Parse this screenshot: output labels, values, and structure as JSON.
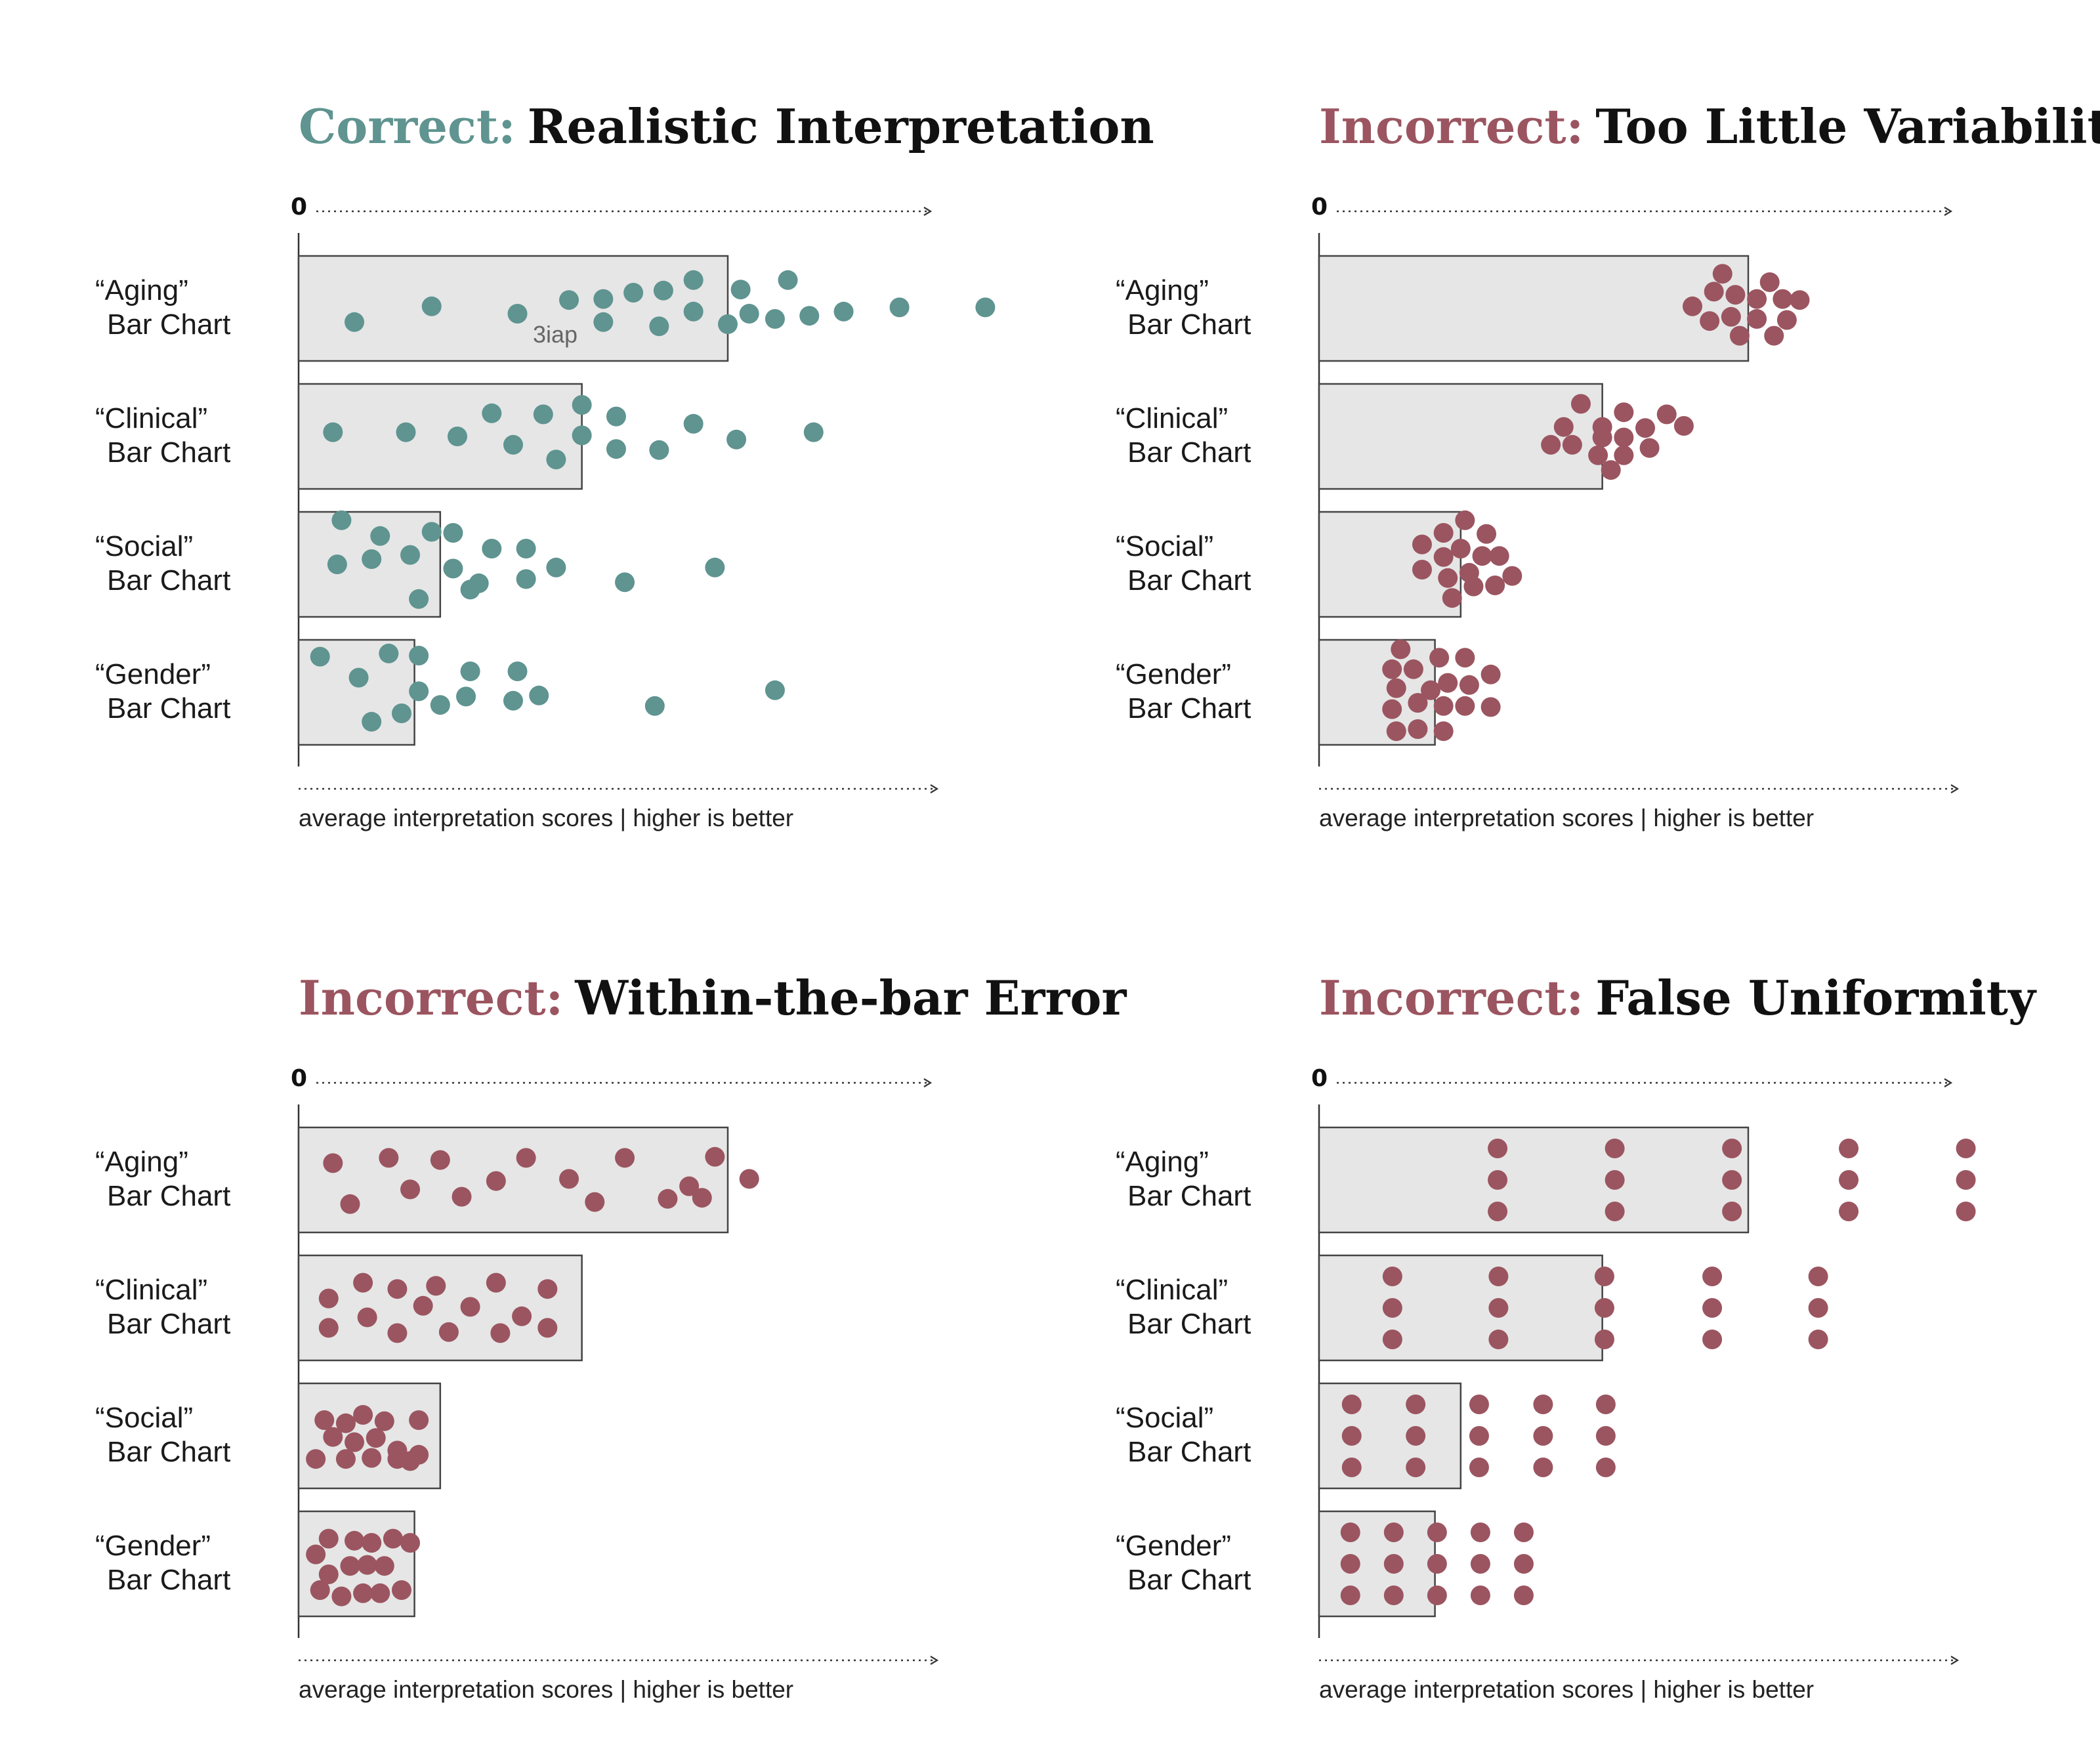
{
  "colors": {
    "correct": "#5f9490",
    "incorrect": "#9b5560",
    "bar_fill": "#e6e6e6",
    "bar_stroke": "#444444",
    "title_rest": "#111111"
  },
  "chart_data": [
    {
      "type": "bar",
      "title_prefix": "Correct:",
      "title_rest": "Realistic Interpretation",
      "tone": "correct",
      "zero_label": "0",
      "xlabel": "average interpretation scores | higher is better",
      "categories": [
        [
          "“Aging”",
          "Bar Chart"
        ],
        [
          "“Clinical”",
          "Bar Chart"
        ],
        [
          "“Social”",
          "Bar Chart"
        ],
        [
          "“Gender”",
          "Bar Chart"
        ]
      ],
      "bar_values": [
        100,
        66,
        33,
        27
      ],
      "note": "3iap",
      "points": [
        [
          [
            13,
            0.63
          ],
          [
            31,
            0.48
          ],
          [
            51,
            0.55
          ],
          [
            63,
            0.42
          ],
          [
            71,
            0.41
          ],
          [
            78,
            0.35
          ],
          [
            85,
            0.33
          ],
          [
            92,
            0.23
          ],
          [
            100,
            0.65
          ],
          [
            71,
            0.63
          ],
          [
            84,
            0.67
          ],
          [
            92,
            0.53
          ],
          [
            103,
            0.32
          ],
          [
            105,
            0.55
          ],
          [
            111,
            0.6
          ],
          [
            114,
            0.23
          ],
          [
            119,
            0.57
          ],
          [
            127,
            0.53
          ],
          [
            140,
            0.49
          ],
          [
            160,
            0.49
          ]
        ],
        [
          [
            8,
            0.46
          ],
          [
            25,
            0.46
          ],
          [
            37,
            0.5
          ],
          [
            45,
            0.28
          ],
          [
            50,
            0.58
          ],
          [
            57,
            0.29
          ],
          [
            60,
            0.72
          ],
          [
            66,
            0.2
          ],
          [
            66,
            0.49
          ],
          [
            74,
            0.31
          ],
          [
            74,
            0.62
          ],
          [
            84,
            0.63
          ],
          [
            92,
            0.38
          ],
          [
            102,
            0.53
          ],
          [
            120,
            0.46
          ]
        ],
        [
          [
            10,
            0.08
          ],
          [
            19,
            0.23
          ],
          [
            9,
            0.5
          ],
          [
            17,
            0.45
          ],
          [
            26,
            0.41
          ],
          [
            31,
            0.19
          ],
          [
            36,
            0.2
          ],
          [
            36,
            0.54
          ],
          [
            40,
            0.74
          ],
          [
            28,
            0.83
          ],
          [
            45,
            0.35
          ],
          [
            53,
            0.35
          ],
          [
            42,
            0.68
          ],
          [
            53,
            0.64
          ],
          [
            60,
            0.53
          ],
          [
            76,
            0.67
          ],
          [
            97,
            0.53
          ]
        ],
        [
          [
            5,
            0.16
          ],
          [
            21,
            0.13
          ],
          [
            14,
            0.36
          ],
          [
            28,
            0.15
          ],
          [
            40,
            0.3
          ],
          [
            51,
            0.3
          ],
          [
            28,
            0.49
          ],
          [
            56,
            0.53
          ],
          [
            39,
            0.54
          ],
          [
            50,
            0.58
          ],
          [
            83,
            0.63
          ],
          [
            111,
            0.48
          ],
          [
            17,
            0.78
          ],
          [
            24,
            0.7
          ],
          [
            33,
            0.62
          ]
        ]
      ]
    },
    {
      "type": "bar",
      "title_prefix": "Incorrect:",
      "title_rest": "Too Little Variability",
      "tone": "incorrect",
      "zero_label": "0",
      "xlabel": "average interpretation scores | higher is better",
      "categories": [
        [
          "“Aging”",
          "Bar Chart"
        ],
        [
          "“Clinical”",
          "Bar Chart"
        ],
        [
          "“Social”",
          "Bar Chart"
        ],
        [
          "“Gender”",
          "Bar Chart"
        ]
      ],
      "bar_values": [
        100,
        66,
        33,
        27
      ],
      "points": [
        [
          [
            94,
            0.17
          ],
          [
            105,
            0.25
          ],
          [
            92,
            0.34
          ],
          [
            97,
            0.37
          ],
          [
            102,
            0.41
          ],
          [
            108,
            0.41
          ],
          [
            112,
            0.42
          ],
          [
            87,
            0.48
          ],
          [
            91,
            0.62
          ],
          [
            96,
            0.58
          ],
          [
            102,
            0.6
          ],
          [
            109,
            0.61
          ],
          [
            98,
            0.76
          ],
          [
            106,
            0.76
          ]
        ],
        [
          [
            61,
            0.19
          ],
          [
            71,
            0.27
          ],
          [
            57,
            0.41
          ],
          [
            66,
            0.41
          ],
          [
            76,
            0.42
          ],
          [
            81,
            0.29
          ],
          [
            85,
            0.4
          ],
          [
            54,
            0.58
          ],
          [
            59,
            0.58
          ],
          [
            66,
            0.51
          ],
          [
            71,
            0.51
          ],
          [
            71,
            0.68
          ],
          [
            65,
            0.68
          ],
          [
            77,
            0.61
          ],
          [
            68,
            0.82
          ]
        ],
        [
          [
            34,
            0.08
          ],
          [
            29,
            0.2
          ],
          [
            39,
            0.21
          ],
          [
            24,
            0.31
          ],
          [
            29,
            0.43
          ],
          [
            33,
            0.35
          ],
          [
            38,
            0.42
          ],
          [
            42,
            0.42
          ],
          [
            24,
            0.55
          ],
          [
            30,
            0.63
          ],
          [
            35,
            0.58
          ],
          [
            41,
            0.7
          ],
          [
            45,
            0.61
          ],
          [
            31,
            0.82
          ],
          [
            36,
            0.71
          ]
        ],
        [
          [
            19,
            0.09
          ],
          [
            17,
            0.28
          ],
          [
            22,
            0.28
          ],
          [
            28,
            0.17
          ],
          [
            34,
            0.17
          ],
          [
            30,
            0.41
          ],
          [
            35,
            0.43
          ],
          [
            40,
            0.33
          ],
          [
            18,
            0.46
          ],
          [
            26,
            0.48
          ],
          [
            23,
            0.6
          ],
          [
            29,
            0.63
          ],
          [
            34,
            0.63
          ],
          [
            40,
            0.64
          ],
          [
            17,
            0.66
          ],
          [
            18,
            0.87
          ],
          [
            23,
            0.85
          ],
          [
            29,
            0.87
          ]
        ]
      ]
    },
    {
      "type": "bar",
      "title_prefix": "Incorrect:",
      "title_rest": "Within-the-bar Error",
      "tone": "incorrect",
      "zero_label": "0",
      "xlabel": "average interpretation scores | higher is better",
      "categories": [
        [
          "“Aging”",
          "Bar Chart"
        ],
        [
          "“Clinical”",
          "Bar Chart"
        ],
        [
          "“Social”",
          "Bar Chart"
        ],
        [
          "“Gender”",
          "Bar Chart"
        ]
      ],
      "bar_values": [
        100,
        66,
        33,
        27
      ],
      "points": [
        [
          [
            8,
            0.34
          ],
          [
            21,
            0.29
          ],
          [
            33,
            0.31
          ],
          [
            53,
            0.29
          ],
          [
            76,
            0.29
          ],
          [
            97,
            0.28
          ],
          [
            26,
            0.59
          ],
          [
            38,
            0.66
          ],
          [
            46,
            0.51
          ],
          [
            63,
            0.49
          ],
          [
            69,
            0.71
          ],
          [
            86,
            0.68
          ],
          [
            91,
            0.56
          ],
          [
            105,
            0.49
          ],
          [
            12,
            0.73
          ],
          [
            94,
            0.67
          ]
        ],
        [
          [
            7,
            0.41
          ],
          [
            15,
            0.26
          ],
          [
            23,
            0.32
          ],
          [
            32,
            0.29
          ],
          [
            46,
            0.26
          ],
          [
            58,
            0.32
          ],
          [
            29,
            0.48
          ],
          [
            40,
            0.49
          ],
          [
            52,
            0.58
          ],
          [
            7,
            0.69
          ],
          [
            16,
            0.59
          ],
          [
            23,
            0.74
          ],
          [
            35,
            0.73
          ],
          [
            47,
            0.74
          ],
          [
            58,
            0.69
          ]
        ],
        [
          [
            6,
            0.35
          ],
          [
            11,
            0.38
          ],
          [
            15,
            0.3
          ],
          [
            20,
            0.36
          ],
          [
            28,
            0.35
          ],
          [
            8,
            0.51
          ],
          [
            13,
            0.56
          ],
          [
            18,
            0.52
          ],
          [
            23,
            0.64
          ],
          [
            4,
            0.72
          ],
          [
            11,
            0.72
          ],
          [
            17,
            0.71
          ],
          [
            23,
            0.72
          ],
          [
            26,
            0.74
          ],
          [
            28,
            0.68
          ]
        ],
        [
          [
            7,
            0.26
          ],
          [
            13,
            0.28
          ],
          [
            17,
            0.3
          ],
          [
            22,
            0.26
          ],
          [
            26,
            0.3
          ],
          [
            4,
            0.41
          ],
          [
            12,
            0.52
          ],
          [
            16,
            0.51
          ],
          [
            20,
            0.52
          ],
          [
            7,
            0.6
          ],
          [
            5,
            0.75
          ],
          [
            10,
            0.81
          ],
          [
            15,
            0.78
          ],
          [
            19,
            0.78
          ],
          [
            24,
            0.75
          ]
        ]
      ]
    },
    {
      "type": "bar",
      "title_prefix": "Incorrect:",
      "title_rest": "False Uniformity",
      "tone": "incorrect",
      "zero_label": "0",
      "xlabel": "average interpretation scores | higher is better",
      "categories": [
        [
          "“Aging”",
          "Bar Chart"
        ],
        [
          "“Clinical”",
          "Bar Chart"
        ],
        [
          "“Social”",
          "Bar Chart"
        ],
        [
          "“Gender”",
          "Bar Chart"
        ]
      ],
      "bar_values": [
        100,
        66,
        33,
        27
      ],
      "point_columns": [
        [
          41.6,
          68.9,
          96.2,
          123.4,
          150.7
        ],
        [
          17.1,
          41.8,
          66.5,
          91.6,
          116.3
        ],
        [
          7.6,
          22.5,
          37.3,
          52.2,
          66.8
        ],
        [
          7.3,
          17.4,
          27.5,
          37.6,
          47.7
        ]
      ],
      "point_rows": [
        0.2,
        0.5,
        0.8
      ]
    }
  ]
}
